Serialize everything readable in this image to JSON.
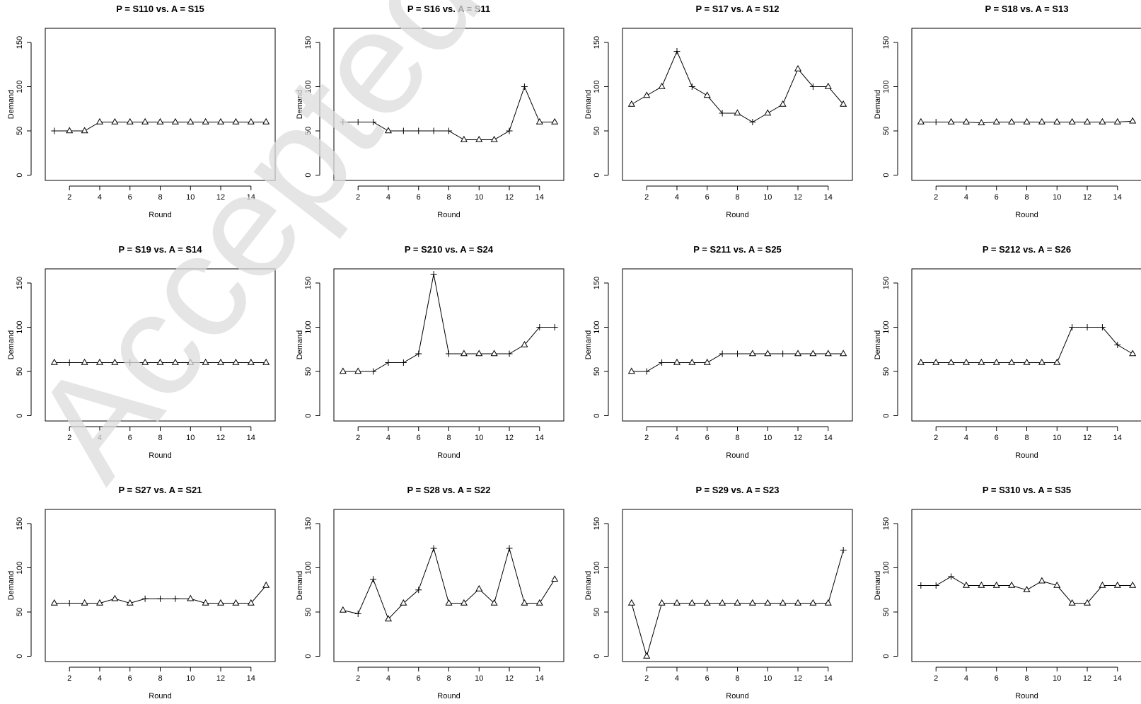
{
  "watermark": "Accepted Ma",
  "chart_data": [
    {
      "type": "line",
      "title": "P = S110  vs.  A = S15",
      "xlabel": "Round",
      "ylabel": "Demand",
      "ylim": [
        0,
        150
      ],
      "x": [
        1,
        2,
        3,
        4,
        5,
        6,
        7,
        8,
        9,
        10,
        11,
        12,
        13,
        14,
        15
      ],
      "values": [
        50,
        50,
        50,
        60,
        60,
        60,
        60,
        60,
        60,
        60,
        60,
        60,
        60,
        60,
        60
      ],
      "markers": [
        "plus",
        "triangle",
        "triangle",
        "triangle",
        "triangle",
        "triangle",
        "triangle",
        "triangle",
        "triangle",
        "triangle",
        "triangle",
        "triangle",
        "triangle",
        "triangle",
        "triangle"
      ]
    },
    {
      "type": "line",
      "title": "P = S16  vs.  A = S11",
      "xlabel": "Round",
      "ylabel": "Demand",
      "ylim": [
        0,
        150
      ],
      "x": [
        1,
        2,
        3,
        4,
        5,
        6,
        7,
        8,
        9,
        10,
        11,
        12,
        13,
        14,
        15
      ],
      "values": [
        60,
        60,
        60,
        50,
        50,
        50,
        50,
        50,
        40,
        40,
        40,
        50,
        100,
        60,
        60
      ],
      "markers": [
        "plus",
        "plus",
        "plus",
        "triangle",
        "plus",
        "plus",
        "plus",
        "plus",
        "triangle",
        "triangle",
        "triangle",
        "plus",
        "plus",
        "triangle",
        "triangle"
      ]
    },
    {
      "type": "line",
      "title": "P = S17  vs.  A = S12",
      "xlabel": "Round",
      "ylabel": "Demand",
      "ylim": [
        0,
        150
      ],
      "x": [
        1,
        2,
        3,
        4,
        5,
        6,
        7,
        8,
        9,
        10,
        11,
        12,
        13,
        14,
        15
      ],
      "values": [
        80,
        90,
        100,
        140,
        100,
        90,
        70,
        70,
        60,
        70,
        80,
        120,
        100,
        100,
        80
      ],
      "markers": [
        "triangle",
        "triangle",
        "triangle",
        "plus",
        "plus",
        "triangle",
        "plus",
        "triangle",
        "plus",
        "triangle",
        "triangle",
        "triangle",
        "plus",
        "triangle",
        "triangle"
      ]
    },
    {
      "type": "line",
      "title": "P = S18  vs.  A = S13",
      "xlabel": "Round",
      "ylabel": "Demand",
      "ylim": [
        0,
        150
      ],
      "x": [
        1,
        2,
        3,
        4,
        5,
        6,
        7,
        8,
        9,
        10,
        11,
        12,
        13,
        14,
        15
      ],
      "values": [
        60,
        60,
        60,
        60,
        59,
        60,
        60,
        60,
        60,
        60,
        60,
        60,
        60,
        60,
        61
      ],
      "markers": [
        "triangle",
        "plus",
        "triangle",
        "triangle",
        "triangle",
        "triangle",
        "triangle",
        "triangle",
        "triangle",
        "triangle",
        "triangle",
        "triangle",
        "triangle",
        "triangle",
        "triangle"
      ]
    },
    {
      "type": "line",
      "title": "P = S19  vs.  A = S14",
      "xlabel": "Round",
      "ylabel": "Demand",
      "ylim": [
        0,
        150
      ],
      "x": [
        1,
        2,
        3,
        4,
        5,
        6,
        7,
        8,
        9,
        10,
        11,
        12,
        13,
        14,
        15
      ],
      "values": [
        60,
        60,
        60,
        60,
        60,
        60,
        60,
        60,
        60,
        60,
        60,
        60,
        60,
        60,
        60
      ],
      "markers": [
        "triangle",
        "plus",
        "triangle",
        "triangle",
        "triangle",
        "plus",
        "triangle",
        "triangle",
        "triangle",
        "triangle",
        "triangle",
        "triangle",
        "triangle",
        "triangle",
        "triangle"
      ]
    },
    {
      "type": "line",
      "title": "P = S210  vs.  A = S24",
      "xlabel": "Round",
      "ylabel": "Demand",
      "ylim": [
        0,
        150
      ],
      "x": [
        1,
        2,
        3,
        4,
        5,
        6,
        7,
        8,
        9,
        10,
        11,
        12,
        13,
        14,
        15
      ],
      "values": [
        50,
        50,
        50,
        60,
        60,
        70,
        160,
        70,
        70,
        70,
        70,
        70,
        80,
        100,
        100
      ],
      "markers": [
        "triangle",
        "triangle",
        "plus",
        "plus",
        "plus",
        "plus",
        "plus",
        "plus",
        "triangle",
        "triangle",
        "triangle",
        "plus",
        "triangle",
        "plus",
        "plus"
      ]
    },
    {
      "type": "line",
      "title": "P = S211  vs.  A = S25",
      "xlabel": "Round",
      "ylabel": "Demand",
      "ylim": [
        0,
        150
      ],
      "x": [
        1,
        2,
        3,
        4,
        5,
        6,
        7,
        8,
        9,
        10,
        11,
        12,
        13,
        14,
        15
      ],
      "values": [
        50,
        50,
        60,
        60,
        60,
        60,
        70,
        70,
        70,
        70,
        70,
        70,
        70,
        70,
        70
      ],
      "markers": [
        "triangle",
        "plus",
        "plus",
        "triangle",
        "triangle",
        "triangle",
        "plus",
        "plus",
        "triangle",
        "triangle",
        "plus",
        "triangle",
        "triangle",
        "triangle",
        "triangle"
      ]
    },
    {
      "type": "line",
      "title": "P = S212  vs.  A = S26",
      "xlabel": "Round",
      "ylabel": "Demand",
      "ylim": [
        0,
        150
      ],
      "x": [
        1,
        2,
        3,
        4,
        5,
        6,
        7,
        8,
        9,
        10,
        11,
        12,
        13,
        14,
        15
      ],
      "values": [
        60,
        60,
        60,
        60,
        60,
        60,
        60,
        60,
        60,
        60,
        100,
        100,
        100,
        80,
        70
      ],
      "markers": [
        "triangle",
        "triangle",
        "triangle",
        "triangle",
        "triangle",
        "triangle",
        "triangle",
        "triangle",
        "triangle",
        "triangle",
        "plus",
        "plus",
        "plus",
        "plus",
        "triangle"
      ]
    },
    {
      "type": "line",
      "title": "P = S27  vs.  A = S21",
      "xlabel": "Round",
      "ylabel": "Demand",
      "ylim": [
        0,
        150
      ],
      "x": [
        1,
        2,
        3,
        4,
        5,
        6,
        7,
        8,
        9,
        10,
        11,
        12,
        13,
        14,
        15
      ],
      "values": [
        60,
        60,
        60,
        60,
        65,
        60,
        65,
        65,
        65,
        65,
        60,
        60,
        60,
        60,
        80
      ],
      "markers": [
        "triangle",
        "plus",
        "triangle",
        "triangle",
        "triangle",
        "triangle",
        "plus",
        "plus",
        "plus",
        "triangle",
        "triangle",
        "triangle",
        "triangle",
        "triangle",
        "triangle"
      ]
    },
    {
      "type": "line",
      "title": "P = S28  vs.  A = S22",
      "xlabel": "Round",
      "ylabel": "Demand",
      "ylim": [
        0,
        150
      ],
      "x": [
        1,
        2,
        3,
        4,
        5,
        6,
        7,
        8,
        9,
        10,
        11,
        12,
        13,
        14,
        15
      ],
      "values": [
        52,
        48,
        87,
        42,
        60,
        75,
        122,
        60,
        60,
        76,
        60,
        122,
        60,
        60,
        87
      ],
      "markers": [
        "triangle",
        "plus",
        "plus",
        "triangle",
        "triangle",
        "plus",
        "plus",
        "triangle",
        "triangle",
        "triangle",
        "triangle",
        "plus",
        "triangle",
        "triangle",
        "triangle"
      ]
    },
    {
      "type": "line",
      "title": "P = S29  vs.  A = S23",
      "xlabel": "Round",
      "ylabel": "Demand",
      "ylim": [
        0,
        150
      ],
      "x": [
        1,
        2,
        3,
        4,
        5,
        6,
        7,
        8,
        9,
        10,
        11,
        12,
        13,
        14,
        15
      ],
      "values": [
        60,
        0,
        60,
        60,
        60,
        60,
        60,
        60,
        60,
        60,
        60,
        60,
        60,
        60,
        120
      ],
      "markers": [
        "triangle",
        "triangle",
        "triangle",
        "triangle",
        "triangle",
        "triangle",
        "triangle",
        "triangle",
        "triangle",
        "triangle",
        "triangle",
        "triangle",
        "triangle",
        "triangle",
        "plus"
      ]
    },
    {
      "type": "line",
      "title": "P = S310  vs.  A = S35",
      "xlabel": "Round",
      "ylabel": "Demand",
      "ylim": [
        0,
        150
      ],
      "x": [
        1,
        2,
        3,
        4,
        5,
        6,
        7,
        8,
        9,
        10,
        11,
        12,
        13,
        14,
        15
      ],
      "values": [
        80,
        80,
        90,
        80,
        80,
        80,
        80,
        75,
        85,
        80,
        60,
        60,
        80,
        80,
        80
      ],
      "markers": [
        "plus",
        "plus",
        "plus",
        "triangle",
        "triangle",
        "triangle",
        "triangle",
        "triangle",
        "triangle",
        "triangle",
        "triangle",
        "triangle",
        "triangle",
        "triangle",
        "triangle"
      ]
    }
  ]
}
